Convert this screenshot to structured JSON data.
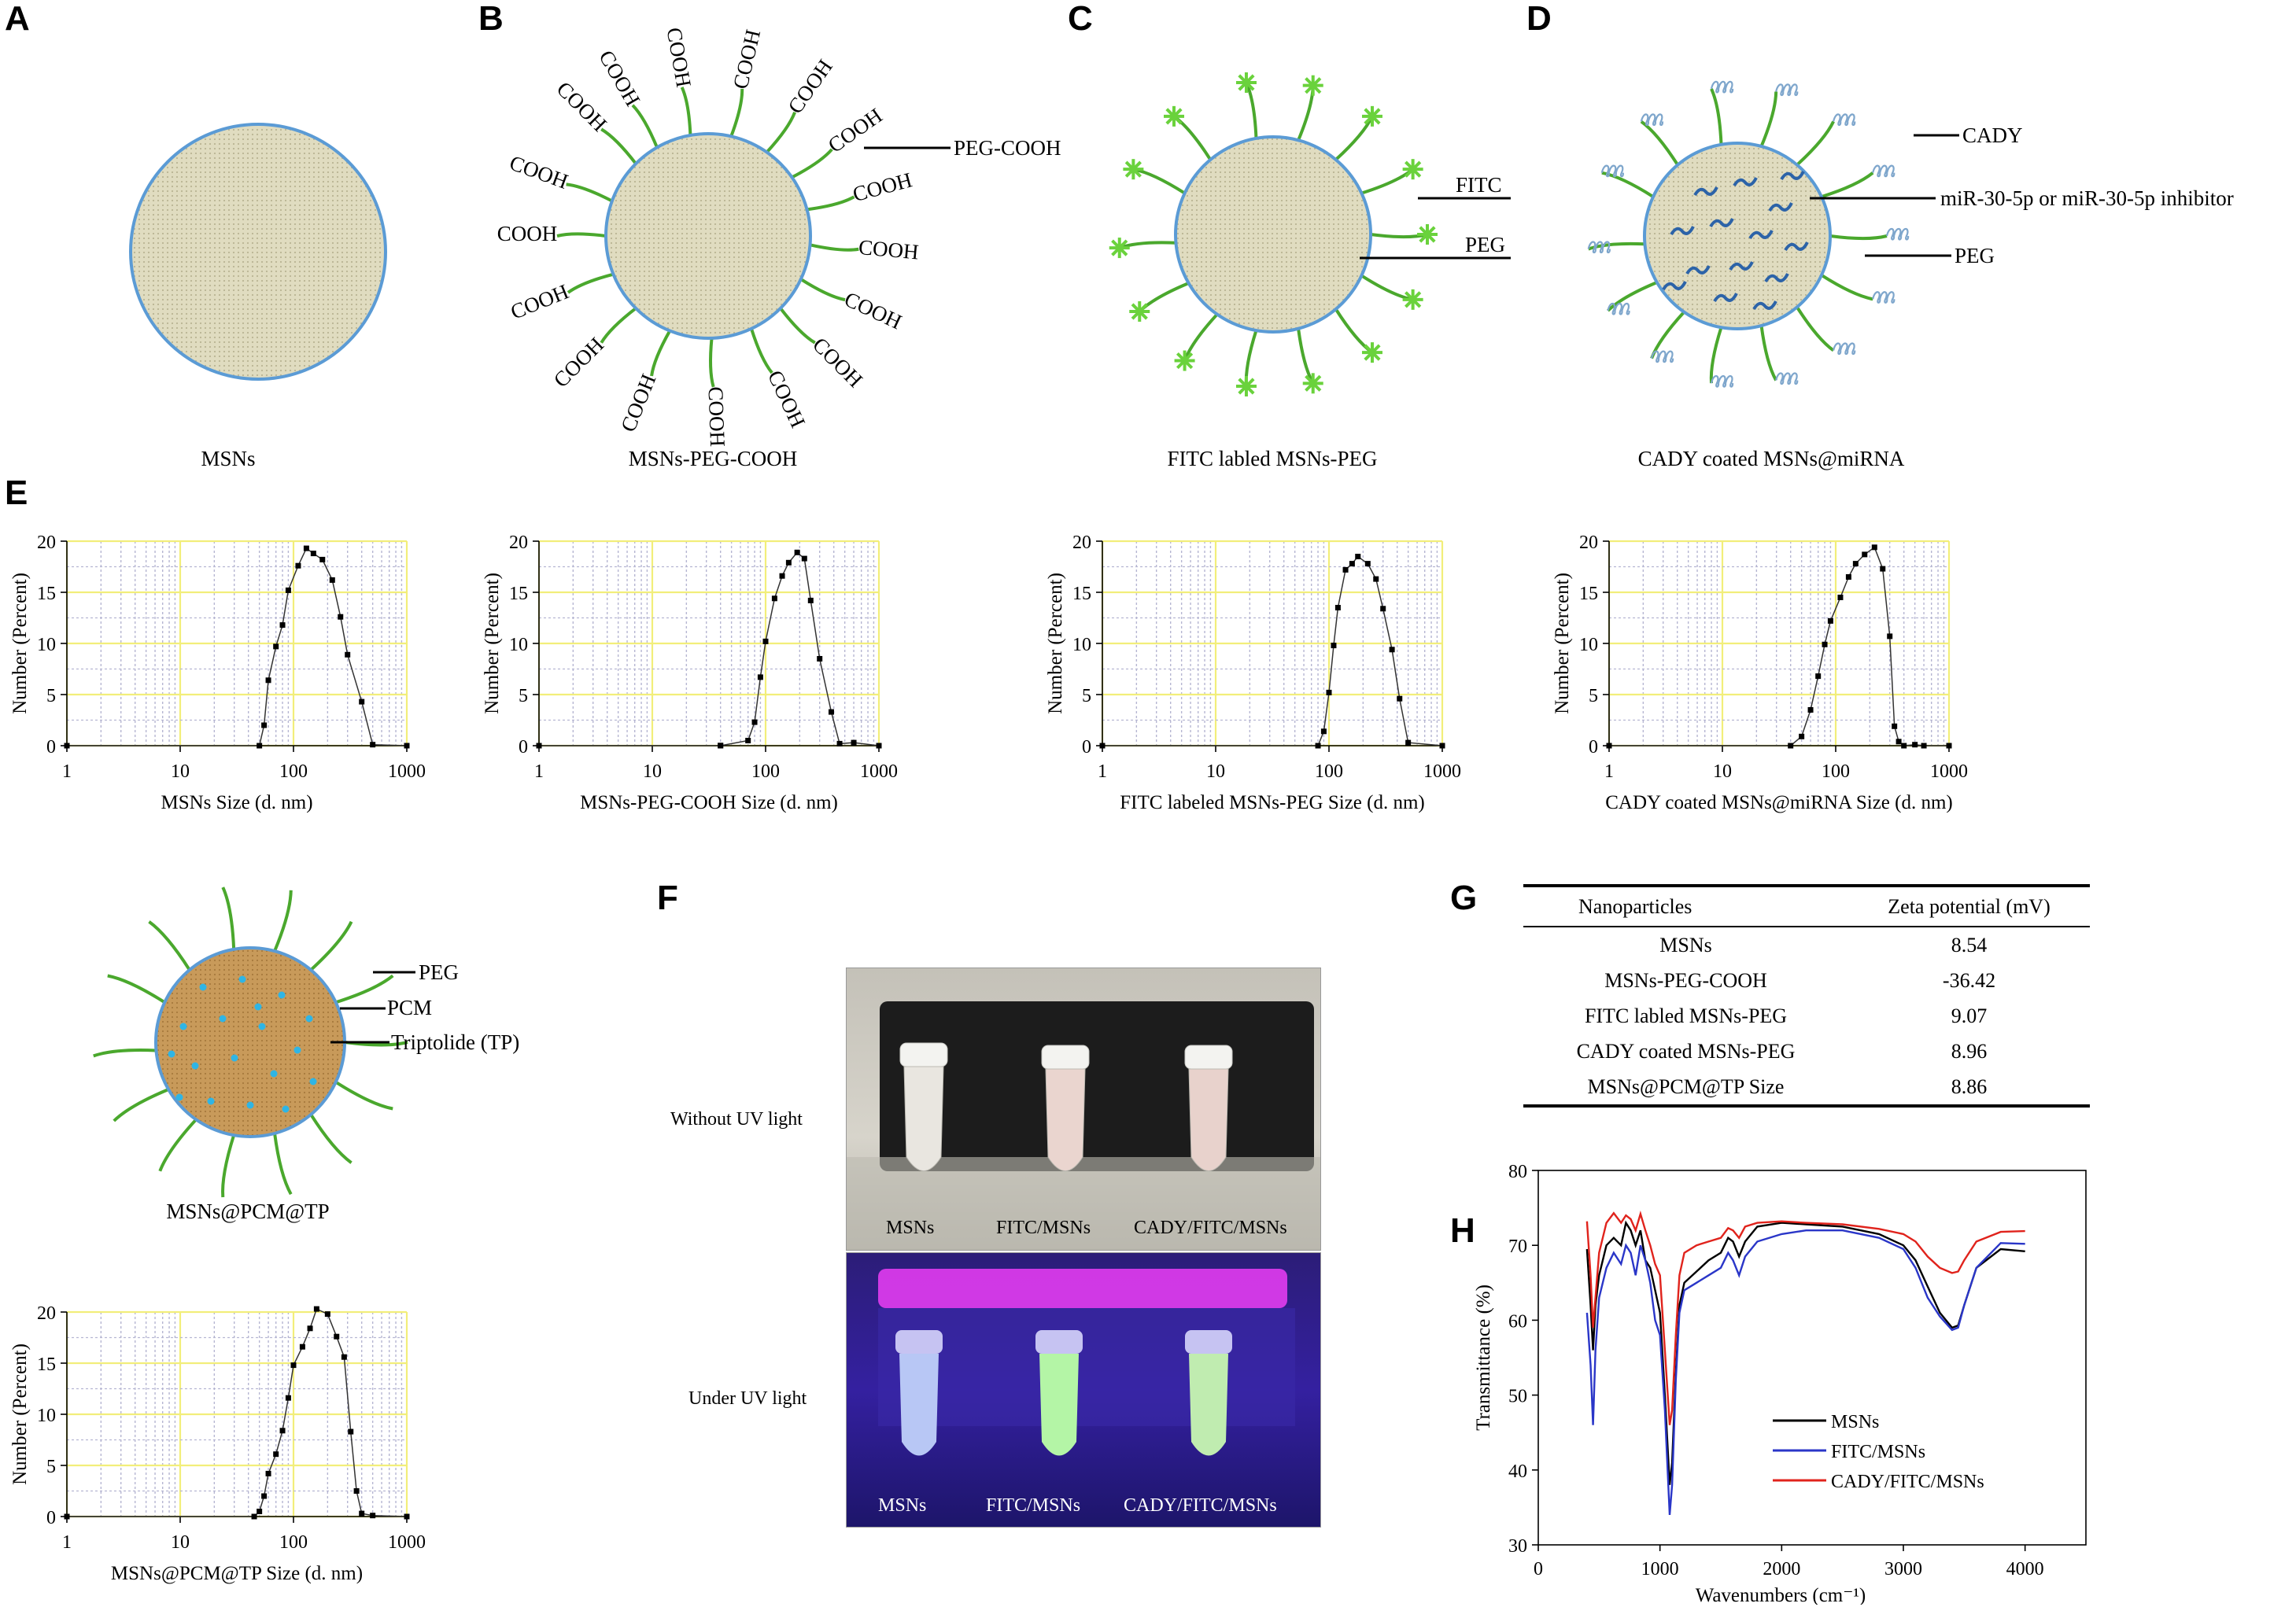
{
  "panel_labels": {
    "A": "A",
    "B": "B",
    "C": "C",
    "D": "D",
    "E": "E",
    "F": "F",
    "G": "G",
    "H": "H"
  },
  "diagram_A": {
    "caption": "MSNs"
  },
  "diagram_B": {
    "caption": "MSNs-PEG-COOH",
    "group": "COOH",
    "callout": "PEG-COOH"
  },
  "diagram_C": {
    "caption": "FITC labled MSNs-PEG",
    "callout_fitc": "FITC",
    "callout_peg": "PEG"
  },
  "diagram_D": {
    "caption": "CADY coated MSNs@miRNA",
    "callout_cady": "CADY",
    "callout_mirna": "miR-30-5p or miR-30-5p inhibitor",
    "callout_peg": "PEG"
  },
  "diagram_TP": {
    "caption": "MSNs@PCM@TP",
    "callout_peg": "PEG",
    "callout_pcm": "PCM",
    "callout_tp": "Triptolide (TP)"
  },
  "photo_F": {
    "row1_label": "Without UV light",
    "row2_label": "Under UV light",
    "tubes": [
      "MSNs",
      "FITC/MSNs",
      "CADY/FITC/MSNs"
    ]
  },
  "table_G": {
    "headers": [
      "Nanoparticles",
      "Zeta potential (mV)"
    ],
    "rows": [
      [
        "MSNs",
        "8.54"
      ],
      [
        "MSNs-PEG-COOH",
        "-36.42"
      ],
      [
        "FITC labled MSNs-PEG",
        "9.07"
      ],
      [
        "CADY coated MSNs-PEG",
        "8.96"
      ],
      [
        "MSNs@PCM@TP Size",
        "8.86"
      ]
    ]
  },
  "colors": {
    "core": "#e0dcc0",
    "core_tp": "#c89a5a",
    "shell": "#5b9bd5",
    "peg": "#4aa82d",
    "fitc": "#6ad23c",
    "mirna": "#2c63a8",
    "grid_major": "#f2ee7a",
    "grid_minor": "#b6b6d2"
  },
  "chart_data": [
    {
      "type": "line",
      "xscale": "log",
      "xlim": [
        1,
        1000
      ],
      "ylim": [
        0,
        20
      ],
      "yticks": [
        0,
        5,
        10,
        15,
        20
      ],
      "xticks": [
        "1",
        "10",
        "100",
        "1000"
      ],
      "xlabel": "MSNs Size (d. nm)",
      "ylabel": "Number (Percent)",
      "x": [
        1,
        50,
        55,
        60,
        70,
        80,
        90,
        110,
        130,
        150,
        180,
        220,
        260,
        300,
        400,
        500,
        1000
      ],
      "y": [
        0,
        0,
        2,
        6.4,
        9.7,
        11.8,
        15.2,
        17.6,
        19.3,
        18.8,
        18.2,
        16.2,
        12.6,
        8.9,
        4.3,
        0.1,
        0
      ]
    },
    {
      "type": "line",
      "xscale": "log",
      "xlim": [
        1,
        1000
      ],
      "ylim": [
        0,
        20
      ],
      "yticks": [
        0,
        5,
        10,
        15,
        20
      ],
      "xticks": [
        "1",
        "10",
        "100",
        "1000"
      ],
      "xlabel": "MSNs-PEG-COOH Size (d. nm)",
      "ylabel": "Number (Percent)",
      "x": [
        1,
        40,
        70,
        80,
        90,
        100,
        120,
        140,
        160,
        190,
        220,
        250,
        300,
        380,
        450,
        600,
        1000
      ],
      "y": [
        0,
        0,
        0.5,
        2.3,
        6.7,
        10.2,
        14.4,
        16.6,
        17.9,
        18.9,
        18.3,
        14.2,
        8.5,
        3.3,
        0.2,
        0.3,
        0
      ],
      "tail_points": [
        [
          40,
          0.02
        ]
      ]
    },
    {
      "type": "line",
      "xscale": "log",
      "xlim": [
        1,
        1000
      ],
      "ylim": [
        0,
        20
      ],
      "yticks": [
        0,
        5,
        10,
        15,
        20
      ],
      "xticks": [
        "1",
        "10",
        "100",
        "1000"
      ],
      "xlabel": "FITC labeled MSNs-PEG Size (d. nm)",
      "ylabel": "Number (Percent)",
      "x": [
        1,
        80,
        90,
        100,
        110,
        120,
        140,
        160,
        180,
        220,
        260,
        300,
        360,
        420,
        500,
        1000
      ],
      "y": [
        0,
        0,
        1.4,
        5.2,
        9.8,
        13.5,
        17.2,
        17.8,
        18.5,
        17.8,
        16.3,
        13.4,
        9.4,
        4.6,
        0.3,
        0
      ]
    },
    {
      "type": "line",
      "xscale": "log",
      "xlim": [
        1,
        1000
      ],
      "ylim": [
        0,
        20
      ],
      "yticks": [
        0,
        5,
        10,
        15,
        20
      ],
      "xticks": [
        "1",
        "10",
        "100",
        "1000"
      ],
      "xlabel": "CADY coated MSNs@miRNA Size (d. nm)",
      "ylabel": "Number (Percent)",
      "x": [
        1,
        40,
        50,
        60,
        70,
        80,
        90,
        110,
        130,
        150,
        180,
        220,
        260,
        300,
        330,
        360,
        400,
        500,
        600,
        1000
      ],
      "y": [
        0,
        0,
        0.9,
        3.5,
        6.8,
        9.9,
        12.2,
        14.5,
        16.5,
        17.8,
        18.7,
        19.4,
        17.3,
        10.7,
        1.9,
        0.4,
        0,
        0.1,
        0,
        0
      ]
    },
    {
      "type": "line",
      "xscale": "log",
      "xlim": [
        1,
        1000
      ],
      "ylim": [
        0,
        20
      ],
      "yticks": [
        0,
        5,
        10,
        15,
        20
      ],
      "xticks": [
        "1",
        "10",
        "100",
        "1000"
      ],
      "xlabel": "MSNs@PCM@TP Size (d. nm)",
      "ylabel": "Number (Percent)",
      "x": [
        1,
        45,
        50,
        55,
        60,
        70,
        80,
        90,
        100,
        120,
        140,
        160,
        200,
        240,
        280,
        320,
        360,
        400,
        500,
        1000
      ],
      "y": [
        0,
        0,
        0.5,
        2,
        4.2,
        6.1,
        8.4,
        11.6,
        14.8,
        16.6,
        18.4,
        20.3,
        19.8,
        17.6,
        15.6,
        8.3,
        2.5,
        0.3,
        0.1,
        0
      ]
    },
    {
      "type": "line",
      "title": "",
      "xlabel": "Wavenumbers (cm⁻¹)",
      "ylabel": "Transmittance (%)",
      "xlim": [
        0,
        4500
      ],
      "ylim": [
        30,
        80
      ],
      "xticks": [
        0,
        1000,
        2000,
        3000,
        4000
      ],
      "yticks": [
        30,
        40,
        50,
        60,
        70,
        80
      ],
      "legend": "bottom-center",
      "series": [
        {
          "name": "MSNs",
          "color": "#000000",
          "x": [
            400,
            430,
            450,
            470,
            500,
            560,
            620,
            680,
            720,
            760,
            800,
            840,
            880,
            920,
            960,
            1000,
            1040,
            1080,
            1100,
            1130,
            1160,
            1200,
            1300,
            1400,
            1500,
            1560,
            1600,
            1650,
            1700,
            1800,
            2000,
            2200,
            2500,
            2800,
            3000,
            3100,
            3200,
            3300,
            3400,
            3450,
            3500,
            3600,
            3800,
            4000
          ],
          "y": [
            69.5,
            62,
            56,
            62,
            66,
            70,
            71,
            70,
            73,
            72,
            70,
            72,
            68,
            67,
            64,
            61,
            50,
            38,
            41,
            53,
            62,
            65,
            66.5,
            68,
            69,
            71,
            70.5,
            68.5,
            70.5,
            72.5,
            73,
            72.8,
            72.5,
            71.5,
            70,
            68,
            64.5,
            61,
            59,
            59.3,
            62,
            67,
            69.5,
            69.2
          ]
        },
        {
          "name": "FITC/MSNs",
          "color": "#2a36c8",
          "x": [
            400,
            430,
            450,
            470,
            500,
            560,
            620,
            680,
            720,
            760,
            800,
            840,
            880,
            920,
            960,
            1000,
            1040,
            1080,
            1100,
            1130,
            1160,
            1200,
            1300,
            1400,
            1500,
            1560,
            1600,
            1650,
            1700,
            1800,
            2000,
            2200,
            2500,
            2800,
            3000,
            3100,
            3200,
            3300,
            3400,
            3450,
            3500,
            3600,
            3800,
            4000
          ],
          "y": [
            61,
            54,
            46,
            56,
            63,
            67,
            69,
            67.5,
            70,
            69,
            66,
            70,
            68,
            65,
            60,
            58,
            48,
            34,
            38,
            52,
            61,
            64,
            65,
            66,
            67,
            69,
            68,
            66,
            68.5,
            70.5,
            71.5,
            72,
            72,
            71,
            69.5,
            67,
            63,
            60.5,
            58.7,
            59,
            62,
            67,
            70.3,
            70.2
          ]
        },
        {
          "name": "CADY/FITC/MSNs",
          "color": "#e0231c",
          "x": [
            400,
            430,
            450,
            470,
            500,
            560,
            620,
            680,
            720,
            760,
            800,
            840,
            880,
            920,
            960,
            1000,
            1040,
            1080,
            1100,
            1130,
            1160,
            1200,
            1300,
            1400,
            1500,
            1560,
            1600,
            1650,
            1700,
            1800,
            2000,
            2200,
            2500,
            2800,
            3000,
            3100,
            3200,
            3300,
            3400,
            3450,
            3500,
            3600,
            3800,
            4000
          ],
          "y": [
            73.2,
            66,
            59,
            63,
            69,
            73,
            74.3,
            73,
            74,
            73.5,
            72,
            74.2,
            72,
            70,
            67.5,
            66,
            56,
            46,
            48,
            58,
            66,
            69,
            70,
            70.5,
            71,
            72.3,
            72,
            71,
            72.5,
            73,
            73.2,
            73,
            72.8,
            72.2,
            71.5,
            70.5,
            68.5,
            67,
            66.3,
            66.5,
            68,
            70.5,
            71.8,
            71.9
          ]
        }
      ]
    }
  ]
}
